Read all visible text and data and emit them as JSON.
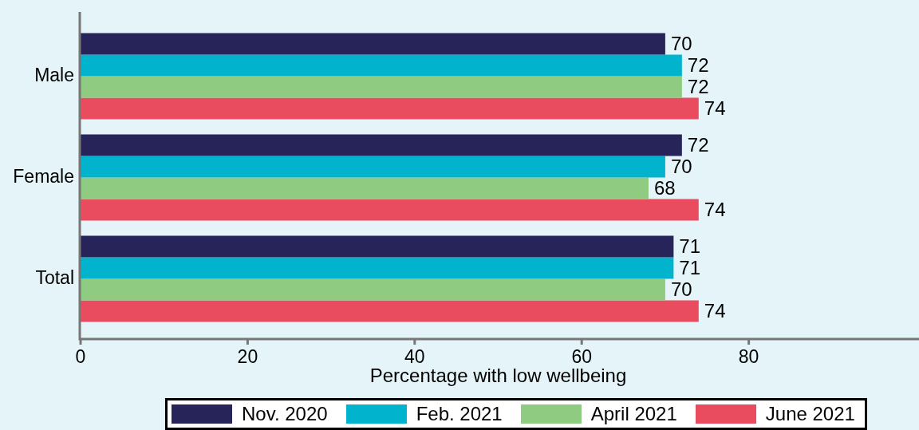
{
  "chart_data": {
    "type": "bar",
    "orientation": "horizontal",
    "xlabel": "Percentage with low wellbeing",
    "categories": [
      "Male",
      "Female",
      "Total"
    ],
    "series": [
      {
        "name": "Nov. 2020",
        "color": "#27245a",
        "values": [
          70,
          72,
          71
        ]
      },
      {
        "name": "Feb. 2021",
        "color": "#02b3ce",
        "values": [
          72,
          70,
          71
        ]
      },
      {
        "name": "April 2021",
        "color": "#8fcb80",
        "values": [
          72,
          68,
          70
        ]
      },
      {
        "name": "June 2021",
        "color": "#e84c5e",
        "values": [
          74,
          74,
          74
        ]
      }
    ],
    "xlim": [
      0,
      100
    ],
    "xticks": [
      0,
      20,
      40,
      60,
      80
    ],
    "data_labels": true,
    "legend": "bottom"
  }
}
